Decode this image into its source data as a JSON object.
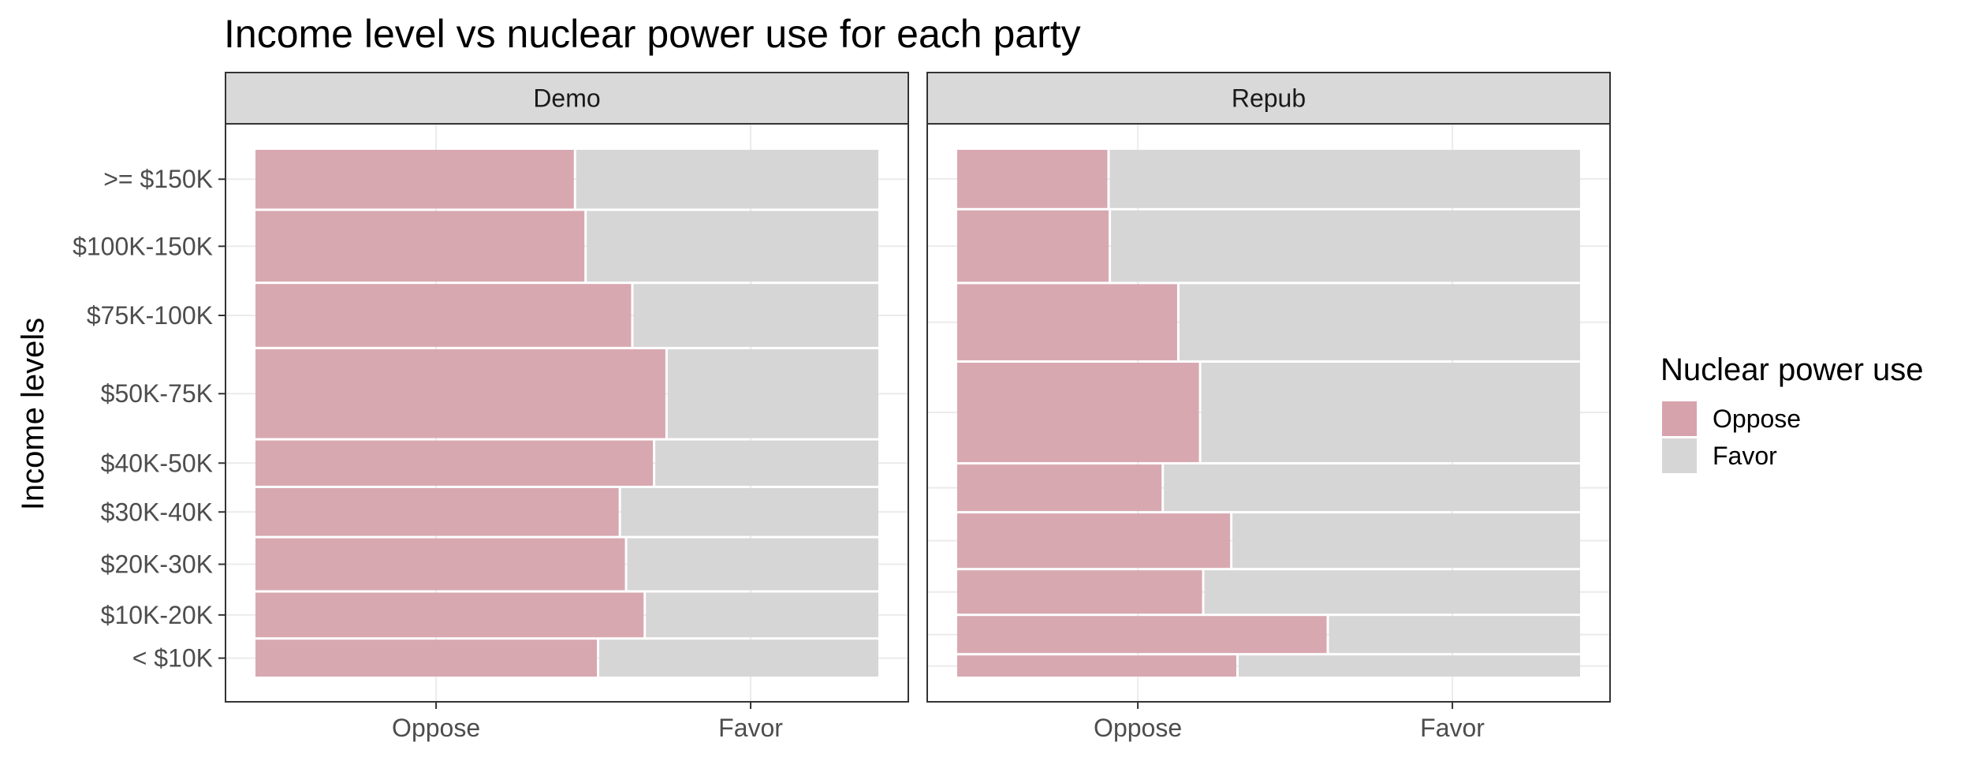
{
  "chart_data": {
    "type": "mosaic",
    "title": "Income level vs nuclear power use for each party",
    "ylabel": "Income levels",
    "xlabel": "",
    "x_categories": [
      "Oppose",
      "Favor"
    ],
    "y_categories": [
      "< $10K",
      "$10K-20K",
      "$20K-30K",
      "$30K-40K",
      "$40K-50K",
      "$50K-75K",
      "$75K-100K",
      "$100K-150K",
      ">= $150K"
    ],
    "legend": {
      "title": "Nuclear power use",
      "position": "right",
      "entries": [
        {
          "label": "Oppose",
          "color": "#d6a3ad"
        },
        {
          "label": "Favor",
          "color": "#d6d6d6"
        }
      ]
    },
    "colors": {
      "Oppose": "#d6a3ad",
      "Favor": "#d6d6d6"
    },
    "grid": true,
    "panels": [
      {
        "label": "Demo",
        "rows": [
          {
            "income": "< $10K",
            "weight": 0.071,
            "oppose_share": 0.55
          },
          {
            "income": "$10K-20K",
            "weight": 0.086,
            "oppose_share": 0.625
          },
          {
            "income": "$20K-30K",
            "weight": 0.1,
            "oppose_share": 0.595
          },
          {
            "income": "$30K-40K",
            "weight": 0.092,
            "oppose_share": 0.585
          },
          {
            "income": "$40K-50K",
            "weight": 0.087,
            "oppose_share": 0.64
          },
          {
            "income": "$50K-75K",
            "weight": 0.171,
            "oppose_share": 0.66
          },
          {
            "income": "$75K-100K",
            "weight": 0.121,
            "oppose_share": 0.605
          },
          {
            "income": "$100K-150K",
            "weight": 0.136,
            "oppose_share": 0.53
          },
          {
            "income": ">= $150K",
            "weight": 0.113,
            "oppose_share": 0.513
          }
        ]
      },
      {
        "label": "Repub",
        "rows": [
          {
            "income": "< $10K",
            "weight": 0.04,
            "oppose_share": 0.45
          },
          {
            "income": "$10K-20K",
            "weight": 0.07,
            "oppose_share": 0.595
          },
          {
            "income": "$20K-30K",
            "weight": 0.082,
            "oppose_share": 0.395
          },
          {
            "income": "$30K-40K",
            "weight": 0.103,
            "oppose_share": 0.44
          },
          {
            "income": "$40K-50K",
            "weight": 0.088,
            "oppose_share": 0.33
          },
          {
            "income": "$50K-75K",
            "weight": 0.188,
            "oppose_share": 0.39
          },
          {
            "income": "$75K-100K",
            "weight": 0.144,
            "oppose_share": 0.355
          },
          {
            "income": "$100K-150K",
            "weight": 0.135,
            "oppose_share": 0.245
          },
          {
            "income": ">= $150K",
            "weight": 0.11,
            "oppose_share": 0.243
          }
        ]
      }
    ]
  }
}
